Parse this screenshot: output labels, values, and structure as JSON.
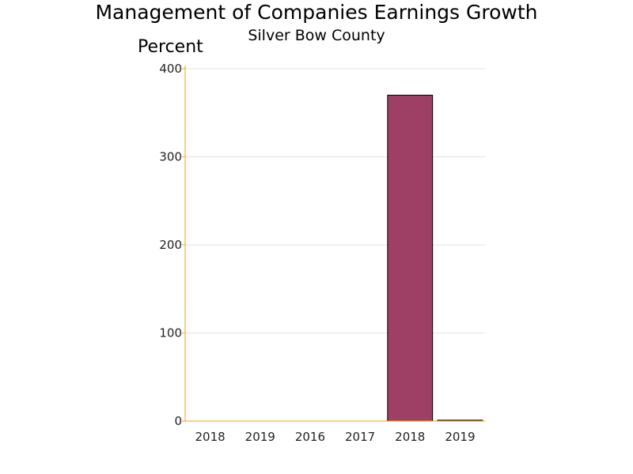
{
  "chart_data": {
    "type": "bar",
    "title": "Management of Companies Earnings Growth",
    "subtitle": "Silver Bow County",
    "ylabel": "Percent",
    "xlabel": "",
    "categories": [
      "2018",
      "2019",
      "2016",
      "2017",
      "2018",
      "2019"
    ],
    "values": [
      0,
      0,
      0,
      0,
      370,
      1
    ],
    "ylim": [
      0,
      400
    ],
    "yticks": [
      0,
      100,
      200,
      300,
      400
    ],
    "grid": true,
    "legend": "none",
    "colors": {
      "bar": "#9e3f66",
      "bar_stroke": "#000000",
      "axis": "#f0a30a",
      "grid": "#e3e3e3",
      "tick_text": "#222222"
    }
  }
}
